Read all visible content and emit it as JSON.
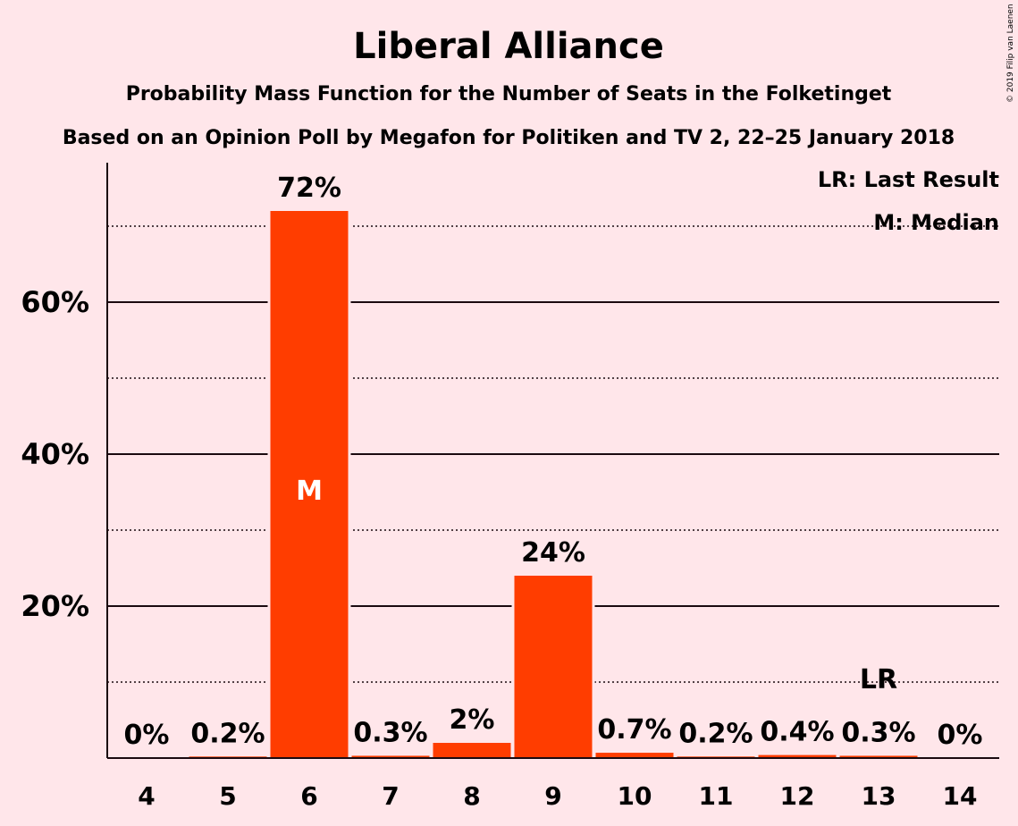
{
  "chart_data": {
    "type": "bar",
    "title": "Liberal Alliance",
    "subtitle": "Probability Mass Function for the Number of Seats in the Folketinget",
    "subtitle2": "Based on an Opinion Poll by Megafon for Politiken and TV 2, 22–25 January 2018",
    "copyright": "© 2019 Filip van Laenen",
    "categories": [
      "4",
      "5",
      "6",
      "7",
      "8",
      "9",
      "10",
      "11",
      "12",
      "13",
      "14"
    ],
    "values": [
      0,
      0.2,
      72,
      0.3,
      2,
      24,
      0.7,
      0.2,
      0.4,
      0.3,
      0
    ],
    "data_labels": [
      "0%",
      "0.2%",
      "72%",
      "0.3%",
      "2%",
      "24%",
      "0.7%",
      "0.2%",
      "0.4%",
      "0.3%",
      "0%"
    ],
    "ylim": [
      0,
      78
    ],
    "yticks": [
      20,
      40,
      60
    ],
    "ytick_labels": [
      "20%",
      "40%",
      "60%"
    ],
    "minor_gridlines": [
      10,
      30,
      50,
      70
    ],
    "median_category": "6",
    "median_marker": "M",
    "last_result_category": "13",
    "last_result_marker": "LR",
    "legend": [
      "LR: Last Result",
      "M: Median"
    ],
    "legend_position": "top-right",
    "bar_color": "#FF3D00",
    "background_color": "#FFE6EA"
  }
}
